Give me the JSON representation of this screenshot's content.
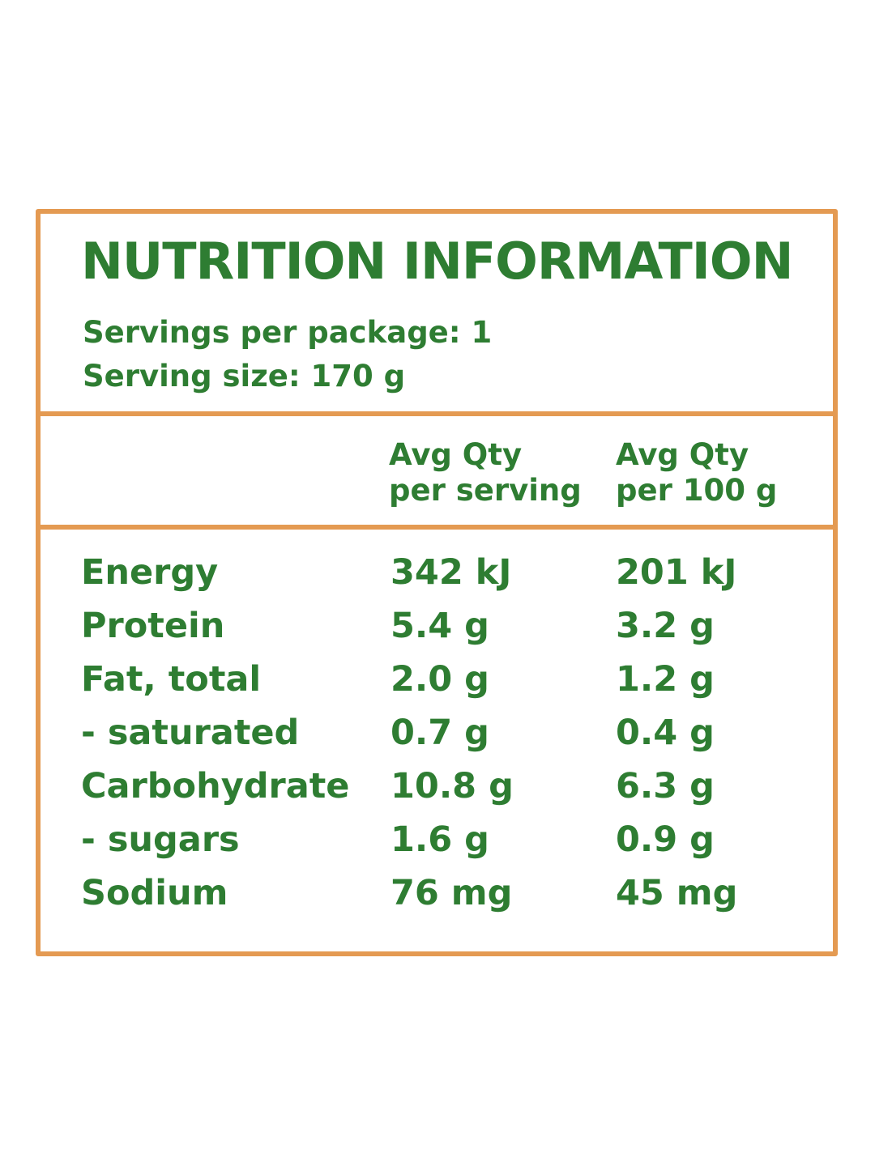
{
  "title": "NUTRITION INFORMATION",
  "servings_per_package": "Servings per package: 1",
  "serving_size": "Serving size: 170 g",
  "columns": {
    "per_serving": {
      "line1": "Avg Qty",
      "line2": "per serving"
    },
    "per_100g": {
      "line1": "Avg Qty",
      "line2": "per 100 g"
    }
  },
  "rows": [
    {
      "name": "Energy",
      "per_serving": "342 kJ",
      "per_100g": "201 kJ"
    },
    {
      "name": "Protein",
      "per_serving": "5.4 g",
      "per_100g": "3.2 g"
    },
    {
      "name": "Fat, total",
      "per_serving": "2.0 g",
      "per_100g": "1.2 g"
    },
    {
      "name": "- saturated",
      "per_serving": "0.7 g",
      "per_100g": "0.4 g"
    },
    {
      "name": "Carbohydrate",
      "per_serving": "10.8 g",
      "per_100g": "6.3 g"
    },
    {
      "name": "- sugars",
      "per_serving": "1.6 g",
      "per_100g": "0.9 g"
    },
    {
      "name": "Sodium",
      "per_serving": "76 mg",
      "per_100g": "45 mg"
    }
  ],
  "colors": {
    "text": "#2e7d32",
    "border": "#e49a52",
    "background": "#ffffff"
  }
}
